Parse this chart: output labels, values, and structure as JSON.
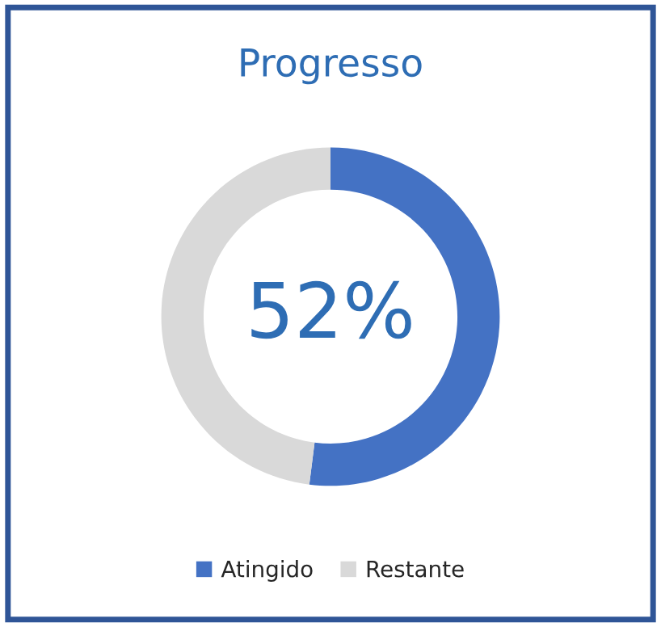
{
  "chart_data": {
    "type": "donut",
    "title": "Progresso",
    "categories": [
      "Atingido",
      "Restante"
    ],
    "values": [
      52,
      48
    ],
    "colors": [
      "#4472c4",
      "#d9d9d9"
    ],
    "annotations": [
      "52%"
    ],
    "legend": "bottom"
  }
}
